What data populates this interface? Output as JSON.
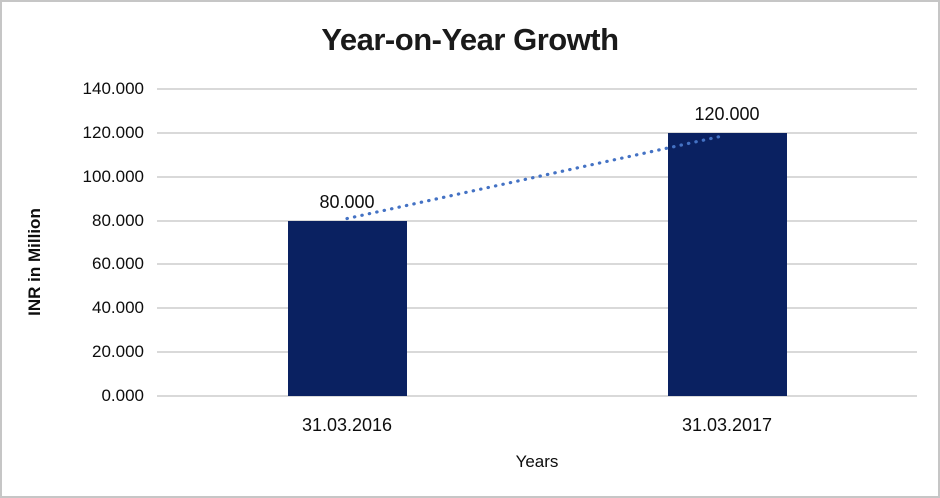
{
  "chart_data": {
    "type": "bar",
    "title": "Year-on-Year Growth",
    "xlabel": "Years",
    "ylabel": "INR in Million",
    "categories": [
      "31.03.2016",
      "31.03.2017"
    ],
    "values": [
      80,
      120
    ],
    "data_labels": [
      "80.000",
      "120.000"
    ],
    "ylim": [
      0,
      140
    ],
    "ytick_step": 20,
    "ytick_labels": [
      "0.000",
      "20.000",
      "40.000",
      "60.000",
      "80.000",
      "100.000",
      "120.000",
      "140.000"
    ],
    "grid": "horizontal",
    "legend": "none",
    "trendline": {
      "style": "dotted",
      "from_value": 80,
      "to_value": 120
    },
    "colors": {
      "bar": "#0a2161",
      "trendline": "#4472c4",
      "gridline": "#d9d9d9",
      "text": "#0d0d0d",
      "title_text": "#1a1a1a",
      "frame_border": "#c6c6c6",
      "background": "#ffffff"
    }
  }
}
